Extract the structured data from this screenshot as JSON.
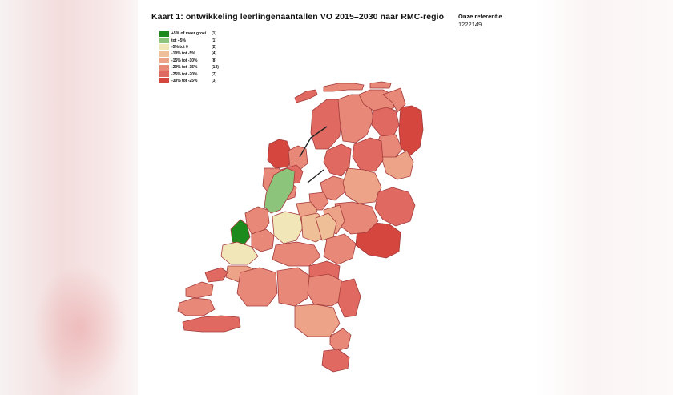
{
  "title": "Kaart 1: ontwikkeling leerlingenaantallen VO 2015–2030 naar RMC-regio",
  "reference": {
    "label": "Onze referentie",
    "value": "1222149"
  },
  "legend": [
    {
      "label": "+5% of meer groei",
      "count": "(1)",
      "color": "#1d8a1d"
    },
    {
      "label": "tot +5%",
      "count": "(1)",
      "color": "#8cc47c"
    },
    {
      "label": "-5% tot 0",
      "count": "(2)",
      "color": "#f0e6b8"
    },
    {
      "label": "-10% tot -5%",
      "count": "(4)",
      "color": "#efbf98"
    },
    {
      "label": "-15% tot -10%",
      "count": "(8)",
      "color": "#eca387"
    },
    {
      "label": "-20% tot -15%",
      "count": "(13)",
      "color": "#e88878"
    },
    {
      "label": "-25% tot -20%",
      "count": "(7)",
      "color": "#e06a62"
    },
    {
      "label": "-30% tot -25%",
      "count": "(3)",
      "color": "#d4463e"
    }
  ]
}
